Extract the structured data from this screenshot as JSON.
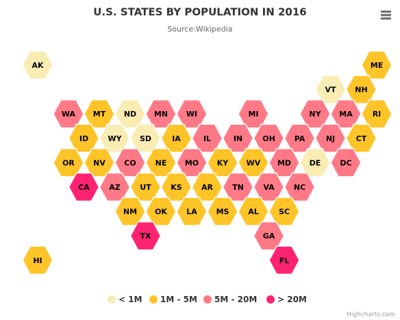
{
  "chart_data": {
    "type": "tilemap",
    "title": "U.S. STATES BY POPULATION IN 2016",
    "subtitle": "Source:Wikipedia",
    "credits": "Highcharts.com",
    "data_classes": [
      {
        "name": "< 1M",
        "color": "#F9EDB3"
      },
      {
        "name": "1M - 5M",
        "color": "#FFC428"
      },
      {
        "name": "5M - 20M",
        "color": "#FF7987"
      },
      {
        "name": "> 20M",
        "color": "#FF2371"
      }
    ],
    "points": [
      {
        "code": "AK",
        "x": 0,
        "y": 0,
        "class": 0
      },
      {
        "code": "ME",
        "x": 11,
        "y": 0,
        "class": 1
      },
      {
        "code": "VT",
        "x": 9,
        "y": 1,
        "class": 0
      },
      {
        "code": "NH",
        "x": 10,
        "y": 1,
        "class": 1
      },
      {
        "code": "WA",
        "x": 1,
        "y": 2,
        "class": 2
      },
      {
        "code": "MT",
        "x": 2,
        "y": 2,
        "class": 1
      },
      {
        "code": "ND",
        "x": 3,
        "y": 2,
        "class": 0
      },
      {
        "code": "MN",
        "x": 4,
        "y": 2,
        "class": 2
      },
      {
        "code": "WI",
        "x": 5,
        "y": 2,
        "class": 2
      },
      {
        "code": "MI",
        "x": 7,
        "y": 2,
        "class": 2
      },
      {
        "code": "NY",
        "x": 9,
        "y": 2,
        "class": 2
      },
      {
        "code": "MA",
        "x": 10,
        "y": 2,
        "class": 2
      },
      {
        "code": "RI",
        "x": 11,
        "y": 2,
        "class": 1
      },
      {
        "code": "ID",
        "x": 1,
        "y": 3,
        "class": 1
      },
      {
        "code": "WY",
        "x": 2,
        "y": 3,
        "class": 0
      },
      {
        "code": "SD",
        "x": 3,
        "y": 3,
        "class": 0
      },
      {
        "code": "IA",
        "x": 4,
        "y": 3,
        "class": 1
      },
      {
        "code": "IL",
        "x": 5,
        "y": 3,
        "class": 2
      },
      {
        "code": "IN",
        "x": 6,
        "y": 3,
        "class": 2
      },
      {
        "code": "OH",
        "x": 7,
        "y": 3,
        "class": 2
      },
      {
        "code": "PA",
        "x": 8,
        "y": 3,
        "class": 2
      },
      {
        "code": "NJ",
        "x": 9,
        "y": 3,
        "class": 2
      },
      {
        "code": "CT",
        "x": 10,
        "y": 3,
        "class": 1
      },
      {
        "code": "OR",
        "x": 1,
        "y": 4,
        "class": 1
      },
      {
        "code": "NV",
        "x": 2,
        "y": 4,
        "class": 1
      },
      {
        "code": "CO",
        "x": 3,
        "y": 4,
        "class": 2
      },
      {
        "code": "NE",
        "x": 4,
        "y": 4,
        "class": 1
      },
      {
        "code": "MO",
        "x": 5,
        "y": 4,
        "class": 2
      },
      {
        "code": "KY",
        "x": 6,
        "y": 4,
        "class": 1
      },
      {
        "code": "WV",
        "x": 7,
        "y": 4,
        "class": 1
      },
      {
        "code": "MD",
        "x": 8,
        "y": 4,
        "class": 2
      },
      {
        "code": "DE",
        "x": 9,
        "y": 4,
        "class": 0
      },
      {
        "code": "DC",
        "x": 10,
        "y": 4,
        "class": 2
      },
      {
        "code": "CA",
        "x": 1,
        "y": 5,
        "class": 3
      },
      {
        "code": "AZ",
        "x": 2,
        "y": 5,
        "class": 2
      },
      {
        "code": "UT",
        "x": 3,
        "y": 5,
        "class": 1
      },
      {
        "code": "KS",
        "x": 4,
        "y": 5,
        "class": 1
      },
      {
        "code": "AR",
        "x": 5,
        "y": 5,
        "class": 1
      },
      {
        "code": "TN",
        "x": 6,
        "y": 5,
        "class": 2
      },
      {
        "code": "VA",
        "x": 7,
        "y": 5,
        "class": 2
      },
      {
        "code": "NC",
        "x": 8,
        "y": 5,
        "class": 2
      },
      {
        "code": "NM",
        "x": 3,
        "y": 6,
        "class": 1
      },
      {
        "code": "OK",
        "x": 4,
        "y": 6,
        "class": 1
      },
      {
        "code": "LA",
        "x": 5,
        "y": 6,
        "class": 1
      },
      {
        "code": "MS",
        "x": 6,
        "y": 6,
        "class": 1
      },
      {
        "code": "AL",
        "x": 7,
        "y": 6,
        "class": 1
      },
      {
        "code": "SC",
        "x": 8,
        "y": 6,
        "class": 1
      },
      {
        "code": "TX",
        "x": 3,
        "y": 7,
        "class": 3
      },
      {
        "code": "GA",
        "x": 7,
        "y": 7,
        "class": 2
      },
      {
        "code": "HI",
        "x": 0,
        "y": 8,
        "class": 1
      },
      {
        "code": "FL",
        "x": 8,
        "y": 8,
        "class": 3
      }
    ]
  }
}
